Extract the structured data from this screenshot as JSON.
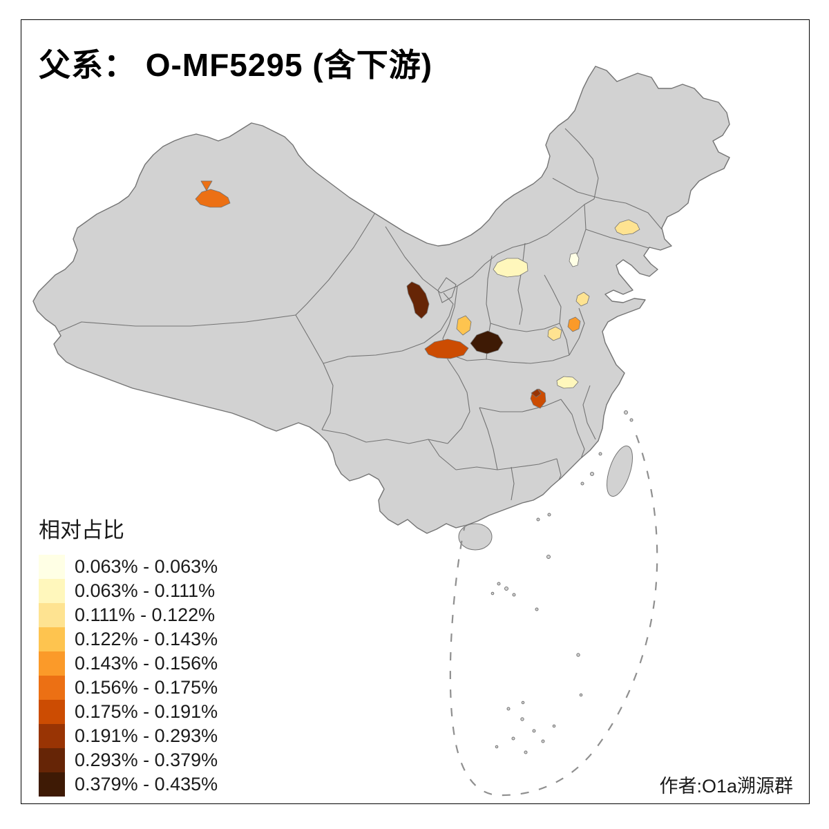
{
  "title": "父系：  O-MF5295 (含下游)",
  "legend": {
    "title": "相对占比",
    "items": [
      {
        "label": "0.063% - 0.063%",
        "color": "#FFFFE5"
      },
      {
        "label": "0.063% - 0.111%",
        "color": "#FFF7BC"
      },
      {
        "label": "0.111% - 0.122%",
        "color": "#FEE391"
      },
      {
        "label": "0.122% - 0.143%",
        "color": "#FEC44F"
      },
      {
        "label": "0.143% - 0.156%",
        "color": "#FB9A29"
      },
      {
        "label": "0.156% - 0.175%",
        "color": "#EC7014"
      },
      {
        "label": "0.175% - 0.191%",
        "color": "#CC4C02"
      },
      {
        "label": "0.191% - 0.293%",
        "color": "#993404"
      },
      {
        "label": "0.293% - 0.379%",
        "color": "#662506"
      },
      {
        "label": "0.379% - 0.435%",
        "color": "#3E1A05"
      }
    ]
  },
  "attribution": "作者:O1a溯源群",
  "map": {
    "land_color": "#D2D2D2",
    "border_color": "#737373",
    "sea_dash_color": "#8F8F8F",
    "background": "#FFFFFF",
    "regions": [
      {
        "name": "xinjiang-prefecture",
        "color": "#EC7014"
      },
      {
        "name": "xinjiang-small-triangle",
        "color": "#EC7014"
      },
      {
        "name": "liaoning-prefecture",
        "color": "#FEE391"
      },
      {
        "name": "shanxi-prefecture",
        "color": "#FFF7BC"
      },
      {
        "name": "beijing-area-prefecture",
        "color": "#FFFFE5"
      },
      {
        "name": "gansu-prefecture",
        "color": "#662506"
      },
      {
        "name": "ningxia-south-prefecture",
        "color": "#FEC44F"
      },
      {
        "name": "shandong-prefecture",
        "color": "#FEE391"
      },
      {
        "name": "shaanxi-south-prefecture",
        "color": "#CC4C02"
      },
      {
        "name": "central-darkest-prefecture",
        "color": "#3E1A05"
      },
      {
        "name": "jiangsu-west-prefecture",
        "color": "#FEE391"
      },
      {
        "name": "jiangsu-north-prefecture",
        "color": "#FB9A29"
      },
      {
        "name": "hubei-se-prefecture",
        "color": "#FFF7BC"
      },
      {
        "name": "hunan-north-prefecture",
        "color": "#CC4C02"
      },
      {
        "name": "hunan-north-cap",
        "color": "#993404"
      }
    ]
  }
}
